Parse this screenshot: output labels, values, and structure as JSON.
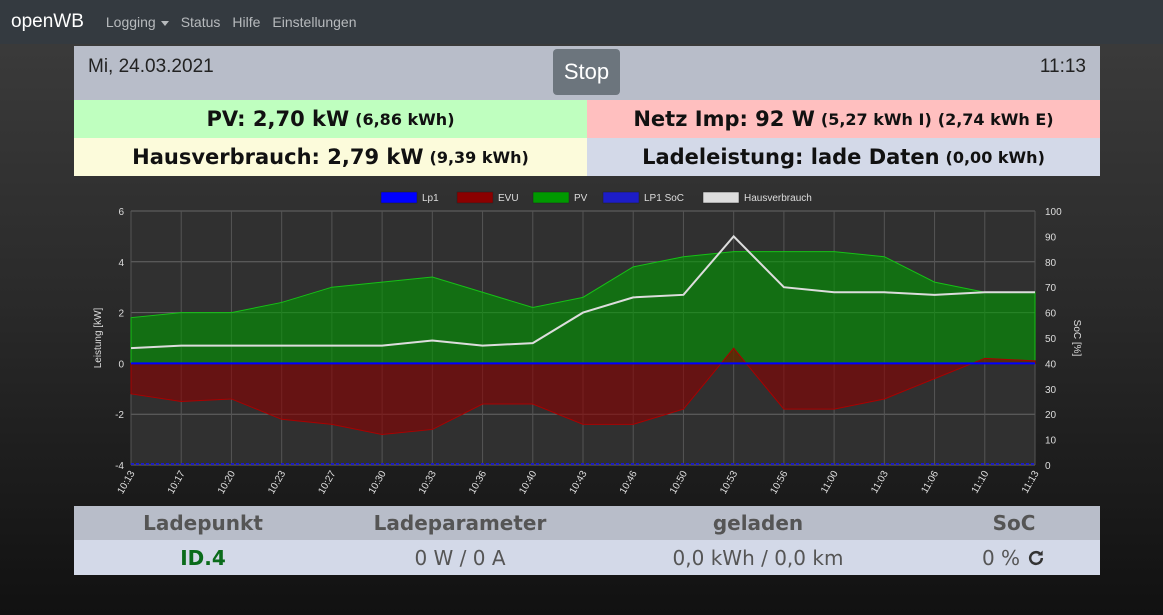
{
  "navbar": {
    "brand": "openWB",
    "items": [
      "Logging",
      "Status",
      "Hilfe",
      "Einstellungen"
    ]
  },
  "header": {
    "date": "Mi, 24.03.2021",
    "stop_label": "Stop",
    "time": "11:13"
  },
  "summary": {
    "pv_main": "PV: 2,70 kW",
    "pv_sub": "(6,86 kWh)",
    "netz_main": "Netz Imp: 92 W",
    "netz_sub1": "(5,27 kWh I)",
    "netz_sub2": "(2,74 kWh E)",
    "haus_main": "Hausverbrauch: 2,79 kW",
    "haus_sub": "(9,39 kWh)",
    "lade_main": "Ladeleistung: lade Daten",
    "lade_sub": "(0,00 kWh)"
  },
  "colors": {
    "navbar": "#343a40",
    "pv": "#bfffbf",
    "netz": "#ffbfbf",
    "haus": "#fcfbdb",
    "lade": "#d3d9e8",
    "header": "#b8bdc9",
    "lp1": "#0000ff",
    "evu": "#8b0000",
    "pv_line": "#009900",
    "haus_line": "#dddddd",
    "soc": "#1d1dc8"
  },
  "chart_data": {
    "type": "area",
    "legend": [
      "Lp1",
      "EVU",
      "PV",
      "LP1 SoC",
      "Hausverbrauch"
    ],
    "legend_position": "top",
    "ylabel": "Leistung [kW]",
    "y2label": "SoC [%]",
    "ylim": [
      -4,
      6
    ],
    "y2lim": [
      0,
      100
    ],
    "y_ticks": [
      "-4",
      "-2",
      "0",
      "2",
      "4",
      "6"
    ],
    "y2_ticks": [
      "0",
      "10",
      "20",
      "30",
      "40",
      "50",
      "60",
      "70",
      "80",
      "90",
      "100"
    ],
    "x": [
      "10:13",
      "10:17",
      "10:20",
      "10:23",
      "10:27",
      "10:30",
      "10:33",
      "10:36",
      "10:40",
      "10:43",
      "10:46",
      "10:50",
      "10:53",
      "10:56",
      "11:00",
      "11:03",
      "11:06",
      "11:10",
      "11:13"
    ],
    "grid": true,
    "series": [
      {
        "name": "PV",
        "values": [
          1.8,
          2.0,
          2.0,
          2.4,
          3.0,
          3.2,
          3.4,
          2.8,
          2.2,
          2.6,
          3.8,
          4.2,
          4.4,
          4.4,
          4.4,
          4.2,
          3.2,
          2.8,
          2.8
        ]
      },
      {
        "name": "EVU",
        "values": [
          -1.2,
          -1.5,
          -1.4,
          -2.2,
          -2.4,
          -2.8,
          -2.6,
          -1.6,
          -1.6,
          -2.4,
          -2.4,
          -1.8,
          0.6,
          -1.8,
          -1.8,
          -1.4,
          -0.6,
          0.2,
          0.1
        ]
      },
      {
        "name": "Hausverbrauch",
        "values": [
          0.6,
          0.7,
          0.7,
          0.7,
          0.7,
          0.7,
          0.9,
          0.7,
          0.8,
          2.0,
          2.6,
          2.7,
          5.0,
          3.0,
          2.8,
          2.8,
          2.7,
          2.8,
          2.8
        ]
      },
      {
        "name": "LP1 SoC",
        "values": [
          0,
          0,
          0,
          0,
          0,
          0,
          0,
          0,
          0,
          0,
          0,
          0,
          0,
          0,
          0,
          0,
          0,
          0,
          0
        ]
      },
      {
        "name": "Lp1",
        "values": [
          0,
          0,
          0,
          0,
          0,
          0,
          0,
          0,
          0,
          0,
          0,
          0,
          0,
          0,
          0,
          0,
          0,
          0,
          0
        ]
      }
    ]
  },
  "table": {
    "headers": [
      "Ladepunkt",
      "Ladeparameter",
      "geladen",
      "SoC"
    ],
    "row": [
      "ID.4",
      "0 W / 0 A",
      "0,0 kWh / 0,0 km",
      "0 %"
    ]
  }
}
